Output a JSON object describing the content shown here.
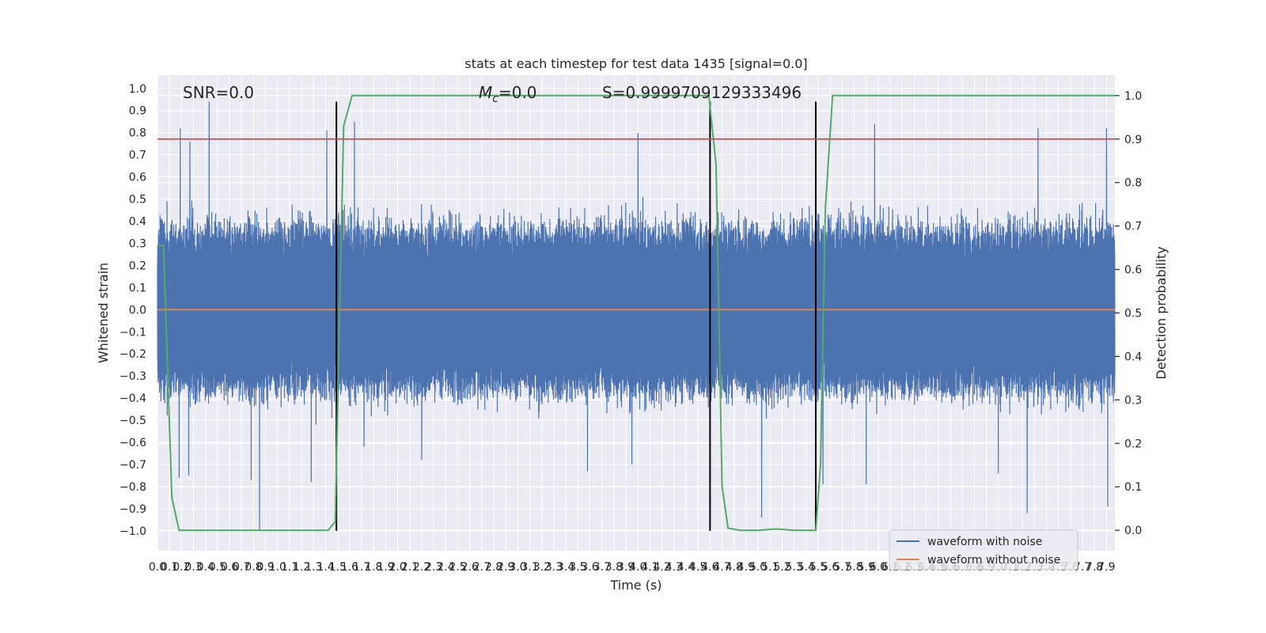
{
  "chart_data": {
    "type": "line",
    "title": "stats at each timestep for test data 1435 [signal=0.0]",
    "xlabel": "Time (s)",
    "ylabel": "Whitened strain",
    "y2label": "Detection probability",
    "xlim": [
      0.0,
      7.97
    ],
    "ylim": [
      -1.09,
      1.06
    ],
    "y2lim": [
      -0.047,
      1.047
    ],
    "x_ticks": [
      0.0,
      0.1,
      0.2,
      0.3,
      0.4,
      0.5,
      0.6,
      0.7,
      0.8,
      0.9,
      1.0,
      1.1,
      1.2,
      1.3,
      1.4,
      1.5,
      1.6,
      1.7,
      1.8,
      1.9,
      2.0,
      2.1,
      2.2,
      2.3,
      2.4,
      2.5,
      2.6,
      2.7,
      2.8,
      2.9,
      3.0,
      3.1,
      3.2,
      3.3,
      3.4,
      3.5,
      3.6,
      3.7,
      3.8,
      3.9,
      4.0,
      4.1,
      4.2,
      4.3,
      4.4,
      4.5,
      4.6,
      4.7,
      4.8,
      4.9,
      5.0,
      5.1,
      5.2,
      5.3,
      5.4,
      5.5,
      5.6,
      5.7,
      5.8,
      5.9,
      6.0,
      6.1,
      6.2,
      6.3,
      6.4,
      6.5,
      6.6,
      6.7,
      6.8,
      6.9,
      7.0,
      7.1,
      7.2,
      7.3,
      7.4,
      7.5,
      7.6,
      7.7,
      7.8,
      7.9
    ],
    "x_tick_labels": [
      "0.0",
      "0.1",
      "0.2",
      "0.3",
      "0.4",
      "0.5",
      "0.6",
      "0.7",
      "0.8",
      "0.9",
      "1.0",
      "1.1",
      "1.2",
      "1.3",
      "1.4",
      "1.5",
      "1.6",
      "1.7",
      "1.8",
      "1.9",
      "2.0",
      "2.1",
      "2.2",
      "2.3",
      "2.4",
      "2.5",
      "2.6",
      "2.7",
      "2.8",
      "2.9",
      "3.0",
      "3.1",
      "3.2",
      "3.3",
      "3.4",
      "3.5",
      "3.6",
      "3.7",
      "3.8",
      "3.9",
      "4.0",
      "4.1",
      "4.2",
      "4.3",
      "4.4",
      "4.5",
      "4.6",
      "4.7",
      "4.8",
      "4.9",
      "5.0",
      "5.1",
      "5.2",
      "5.3",
      "5.4",
      "5.5",
      "5.6",
      "5.7",
      "5.8",
      "5.9",
      "6.0",
      "6.1",
      "6.2",
      "6.3",
      "6.4",
      "6.5",
      "6.6",
      "6.7",
      "6.8",
      "6.9",
      "7.0",
      "7.1",
      "7.2",
      "7.3",
      "7.4",
      "7.5",
      "7.6",
      "7.7",
      "7.8",
      "7.9"
    ],
    "y_ticks": [
      -1.0,
      -0.9,
      -0.8,
      -0.7,
      -0.6,
      -0.5,
      -0.4,
      -0.3,
      -0.2,
      -0.1,
      0.0,
      0.1,
      0.2,
      0.3,
      0.4,
      0.5,
      0.6,
      0.7,
      0.8,
      0.9,
      1.0
    ],
    "y_tick_labels": [
      "−1.0",
      "−0.9",
      "−0.8",
      "−0.7",
      "−0.6",
      "−0.5",
      "−0.4",
      "−0.3",
      "−0.2",
      "−0.1",
      "0.0",
      "0.1",
      "0.2",
      "0.3",
      "0.4",
      "0.5",
      "0.6",
      "0.7",
      "0.8",
      "0.9",
      "1.0"
    ],
    "y2_ticks": [
      0.0,
      0.1,
      0.2,
      0.3,
      0.4,
      0.5,
      0.6,
      0.7,
      0.8,
      0.9,
      1.0
    ],
    "y2_tick_labels": [
      "0.0",
      "0.1",
      "0.2",
      "0.3",
      "0.4",
      "0.5",
      "0.6",
      "0.7",
      "0.8",
      "0.9",
      "1.0"
    ],
    "grid": true,
    "legend_position": "bottom-right",
    "colors": {
      "waveform_with_noise": "#4c72b0",
      "waveform_without_noise": "#dd8452",
      "detection_probability": "#55a868",
      "threshold": "#c44e52",
      "markers": "#000000",
      "axes_bg": "#eaeaf2",
      "grid": "#ffffff"
    },
    "annotations": [
      {
        "text": "SNR=0.0"
      },
      {
        "text_prefix": "M",
        "text_sub": "c",
        "text_suffix": "=0.0"
      },
      {
        "text": "S=0.9999709129333496"
      }
    ],
    "series": [
      {
        "name": "waveform with noise",
        "kind": "noise",
        "x_range": [
          0.0,
          7.97
        ],
        "envelope_low": -0.42,
        "envelope_high": 0.42,
        "spikes": [
          {
            "x": 0.19,
            "y": 0.82
          },
          {
            "x": 0.27,
            "y": 0.76
          },
          {
            "x": 0.43,
            "y": 0.94
          },
          {
            "x": 1.41,
            "y": 0.81
          },
          {
            "x": 1.64,
            "y": 0.85
          },
          {
            "x": 4.0,
            "y": 0.8
          },
          {
            "x": 5.97,
            "y": 0.84
          },
          {
            "x": 7.33,
            "y": 0.82
          },
          {
            "x": 7.9,
            "y": 0.82
          },
          {
            "x": 0.85,
            "y": -1.0
          },
          {
            "x": 0.18,
            "y": -0.76
          },
          {
            "x": 0.26,
            "y": -0.75
          },
          {
            "x": 0.78,
            "y": -0.77
          },
          {
            "x": 1.28,
            "y": -0.78
          },
          {
            "x": 3.95,
            "y": -0.7
          },
          {
            "x": 5.03,
            "y": -0.94
          },
          {
            "x": 5.54,
            "y": -0.79
          },
          {
            "x": 5.9,
            "y": -0.79
          },
          {
            "x": 7.0,
            "y": -0.74
          },
          {
            "x": 7.24,
            "y": -0.92
          },
          {
            "x": 7.91,
            "y": -0.89
          },
          {
            "x": 3.58,
            "y": -0.73
          },
          {
            "x": 1.72,
            "y": -0.62
          },
          {
            "x": 2.2,
            "y": -0.68
          }
        ]
      },
      {
        "name": "waveform without noise",
        "x": [
          0.0,
          7.97
        ],
        "y": [
          0.0,
          0.0
        ]
      },
      {
        "name": "",
        "axis": "right",
        "x": [
          0.0,
          0.05,
          0.12,
          0.18,
          0.5,
          1.0,
          1.42,
          1.48,
          1.55,
          1.62,
          2.5,
          3.5,
          4.59,
          4.65,
          4.7,
          4.75,
          4.85,
          5.0,
          5.15,
          5.3,
          5.48,
          5.52,
          5.56,
          5.62,
          6.5,
          7.97
        ],
        "y": [
          0.655,
          0.655,
          0.075,
          0.0,
          0.0,
          0.0,
          0.0,
          0.02,
          0.93,
          1.0,
          1.0,
          1.0,
          1.0,
          0.84,
          0.1,
          0.005,
          0.0,
          0.0,
          0.003,
          0.0,
          0.0,
          0.15,
          0.74,
          1.0,
          1.0,
          1.0
        ]
      }
    ],
    "threshold_line": {
      "axis": "right",
      "y": 0.9
    },
    "vertical_markers": [
      {
        "x": 1.49,
        "ymin": -1.0,
        "ymax": 0.94
      },
      {
        "x": 4.6,
        "ymin": -1.0,
        "ymax": 0.94
      },
      {
        "x": 5.48,
        "ymin": -1.0,
        "ymax": 0.94
      }
    ],
    "legend": [
      {
        "label": "waveform with noise",
        "color_key": "waveform_with_noise"
      },
      {
        "label": "waveform without noise",
        "color_key": "waveform_without_noise"
      }
    ]
  }
}
